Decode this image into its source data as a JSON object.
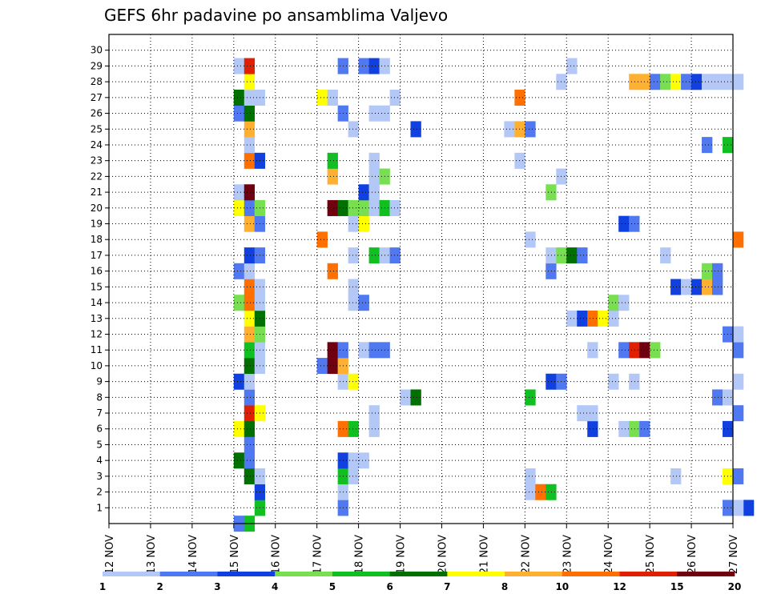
{
  "chart_data": {
    "type": "heatmap",
    "title": "GEFS 6hr padavine po ansamblima Valjevo",
    "x_labels": [
      "12 NOV",
      "13 NOV",
      "14 NOV",
      "15 NOV",
      "16 NOV",
      "17 NOV",
      "18 NOV",
      "19 NOV",
      "20 NOV",
      "21 NOV",
      "22 NOV",
      "23 NOV",
      "24 NOV",
      "25 NOV",
      "26 NOV",
      "27 NOV"
    ],
    "x_range": [
      0,
      60
    ],
    "y_labels": [
      "1",
      "2",
      "3",
      "4",
      "5",
      "6",
      "7",
      "8",
      "9",
      "10",
      "11",
      "12",
      "13",
      "14",
      "15",
      "16",
      "17",
      "18",
      "19",
      "20",
      "21",
      "22",
      "23",
      "24",
      "25",
      "26",
      "27",
      "28",
      "29",
      "30"
    ],
    "y_range": [
      0,
      31
    ],
    "grid": true,
    "legend": {
      "placement": "bottom",
      "thresholds": [
        "1",
        "2",
        "3",
        "4",
        "5",
        "6",
        "7",
        "8",
        "10",
        "12",
        "15",
        "20"
      ],
      "colors": [
        "#b4c8f8",
        "#5078f0",
        "#1040e0",
        "#78e050",
        "#10c020",
        "#007000",
        "#ffff00",
        "#ffb030",
        "#ff7000",
        "#e02000",
        "#700010"
      ]
    },
    "cells": [
      [
        12,
        0,
        1
      ],
      [
        13,
        0,
        4
      ],
      [
        14,
        1,
        4
      ],
      [
        22,
        1,
        1
      ],
      [
        61,
        1,
        2
      ],
      [
        59,
        1,
        1
      ],
      [
        60,
        1,
        0
      ],
      [
        14,
        2,
        2
      ],
      [
        22,
        2,
        0
      ],
      [
        40,
        2,
        0
      ],
      [
        41,
        2,
        8
      ],
      [
        42,
        2,
        4
      ],
      [
        13,
        3,
        5
      ],
      [
        14,
        3,
        0
      ],
      [
        22,
        3,
        4
      ],
      [
        23,
        3,
        0
      ],
      [
        40,
        3,
        0
      ],
      [
        54,
        3,
        0
      ],
      [
        59,
        3,
        6
      ],
      [
        60,
        3,
        1
      ],
      [
        12,
        4,
        5
      ],
      [
        13,
        4,
        1
      ],
      [
        22,
        4,
        2
      ],
      [
        23,
        4,
        0
      ],
      [
        24,
        4,
        0
      ],
      [
        13,
        5,
        1
      ],
      [
        12,
        6,
        6
      ],
      [
        13,
        6,
        5
      ],
      [
        22,
        6,
        8
      ],
      [
        23,
        6,
        4
      ],
      [
        25,
        6,
        0
      ],
      [
        46,
        6,
        2
      ],
      [
        49,
        6,
        0
      ],
      [
        50,
        6,
        3
      ],
      [
        51,
        6,
        1
      ],
      [
        59,
        6,
        2
      ],
      [
        13,
        7,
        9
      ],
      [
        14,
        7,
        6
      ],
      [
        25,
        7,
        0
      ],
      [
        45,
        7,
        0
      ],
      [
        46,
        7,
        0
      ],
      [
        60,
        7,
        1
      ],
      [
        13,
        8,
        1
      ],
      [
        28,
        8,
        0
      ],
      [
        29,
        8,
        5
      ],
      [
        40,
        8,
        4
      ],
      [
        58,
        8,
        1
      ],
      [
        59,
        8,
        0
      ],
      [
        12,
        9,
        2
      ],
      [
        13,
        9,
        0
      ],
      [
        22,
        9,
        0
      ],
      [
        23,
        9,
        6
      ],
      [
        42,
        9,
        2
      ],
      [
        43,
        9,
        1
      ],
      [
        48,
        9,
        0
      ],
      [
        50,
        9,
        0
      ],
      [
        60,
        9,
        0
      ],
      [
        13,
        10,
        5
      ],
      [
        14,
        10,
        0
      ],
      [
        20,
        10,
        1
      ],
      [
        21,
        10,
        10
      ],
      [
        22,
        10,
        7
      ],
      [
        13,
        11,
        4
      ],
      [
        14,
        11,
        0
      ],
      [
        21,
        11,
        10
      ],
      [
        22,
        11,
        1
      ],
      [
        24,
        11,
        0
      ],
      [
        25,
        11,
        1
      ],
      [
        26,
        11,
        1
      ],
      [
        46,
        11,
        0
      ],
      [
        49,
        11,
        1
      ],
      [
        50,
        11,
        9
      ],
      [
        51,
        11,
        10
      ],
      [
        52,
        11,
        3
      ],
      [
        60,
        11,
        1
      ],
      [
        13,
        12,
        7
      ],
      [
        14,
        12,
        3
      ],
      [
        59,
        12,
        1
      ],
      [
        60,
        12,
        0
      ],
      [
        13,
        13,
        6
      ],
      [
        14,
        13,
        5
      ],
      [
        44,
        13,
        0
      ],
      [
        45,
        13,
        2
      ],
      [
        46,
        13,
        8
      ],
      [
        47,
        13,
        6
      ],
      [
        48,
        13,
        0
      ],
      [
        12,
        14,
        3
      ],
      [
        13,
        14,
        8
      ],
      [
        14,
        14,
        0
      ],
      [
        23,
        14,
        0
      ],
      [
        24,
        14,
        1
      ],
      [
        48,
        14,
        3
      ],
      [
        49,
        14,
        0
      ],
      [
        13,
        15,
        8
      ],
      [
        14,
        15,
        0
      ],
      [
        23,
        15,
        0
      ],
      [
        54,
        15,
        2
      ],
      [
        55,
        15,
        0
      ],
      [
        56,
        15,
        2
      ],
      [
        57,
        15,
        7
      ],
      [
        58,
        15,
        1
      ],
      [
        12,
        16,
        1
      ],
      [
        13,
        16,
        0
      ],
      [
        21,
        16,
        8
      ],
      [
        42,
        16,
        1
      ],
      [
        57,
        16,
        3
      ],
      [
        58,
        16,
        1
      ],
      [
        13,
        17,
        2
      ],
      [
        14,
        17,
        1
      ],
      [
        23,
        17,
        0
      ],
      [
        25,
        17,
        4
      ],
      [
        26,
        17,
        0
      ],
      [
        27,
        17,
        1
      ],
      [
        42,
        17,
        0
      ],
      [
        43,
        17,
        3
      ],
      [
        44,
        17,
        5
      ],
      [
        45,
        17,
        1
      ],
      [
        53,
        17,
        0
      ],
      [
        20,
        18,
        8
      ],
      [
        40,
        18,
        0
      ],
      [
        60,
        18,
        8
      ],
      [
        13,
        19,
        7
      ],
      [
        14,
        19,
        1
      ],
      [
        23,
        19,
        0
      ],
      [
        24,
        19,
        6
      ],
      [
        49,
        19,
        2
      ],
      [
        50,
        19,
        1
      ],
      [
        12,
        20,
        6
      ],
      [
        13,
        20,
        1
      ],
      [
        14,
        20,
        3
      ],
      [
        21,
        20,
        10
      ],
      [
        22,
        20,
        5
      ],
      [
        23,
        20,
        3
      ],
      [
        24,
        20,
        3
      ],
      [
        25,
        20,
        0
      ],
      [
        26,
        20,
        4
      ],
      [
        27,
        20,
        0
      ],
      [
        12,
        21,
        0
      ],
      [
        13,
        21,
        10
      ],
      [
        24,
        21,
        2
      ],
      [
        25,
        21,
        0
      ],
      [
        42,
        21,
        3
      ],
      [
        21,
        22,
        7
      ],
      [
        25,
        22,
        0
      ],
      [
        26,
        22,
        3
      ],
      [
        43,
        22,
        0
      ],
      [
        13,
        23,
        8
      ],
      [
        14,
        23,
        2
      ],
      [
        21,
        23,
        4
      ],
      [
        25,
        23,
        0
      ],
      [
        39,
        23,
        0
      ],
      [
        13,
        24,
        0
      ],
      [
        57,
        24,
        1
      ],
      [
        59,
        24,
        4
      ],
      [
        13,
        25,
        7
      ],
      [
        23,
        25,
        0
      ],
      [
        29,
        25,
        2
      ],
      [
        38,
        25,
        0
      ],
      [
        39,
        25,
        7
      ],
      [
        40,
        25,
        1
      ],
      [
        12,
        26,
        1
      ],
      [
        13,
        26,
        5
      ],
      [
        22,
        26,
        1
      ],
      [
        25,
        26,
        0
      ],
      [
        26,
        26,
        0
      ],
      [
        12,
        27,
        5
      ],
      [
        13,
        27,
        0
      ],
      [
        14,
        27,
        0
      ],
      [
        20,
        27,
        6
      ],
      [
        21,
        27,
        0
      ],
      [
        27,
        27,
        0
      ],
      [
        39,
        27,
        8
      ],
      [
        13,
        28,
        6
      ],
      [
        43,
        28,
        0
      ],
      [
        50,
        28,
        7
      ],
      [
        51,
        28,
        7
      ],
      [
        52,
        28,
        1
      ],
      [
        53,
        28,
        3
      ],
      [
        54,
        28,
        6
      ],
      [
        55,
        28,
        1
      ],
      [
        56,
        28,
        2
      ],
      [
        57,
        28,
        0
      ],
      [
        58,
        28,
        0
      ],
      [
        59,
        28,
        0
      ],
      [
        60,
        28,
        0
      ],
      [
        12,
        29,
        0
      ],
      [
        13,
        29,
        9
      ],
      [
        22,
        29,
        1
      ],
      [
        24,
        29,
        1
      ],
      [
        25,
        29,
        2
      ],
      [
        26,
        29,
        0
      ],
      [
        44,
        29,
        0
      ]
    ]
  }
}
